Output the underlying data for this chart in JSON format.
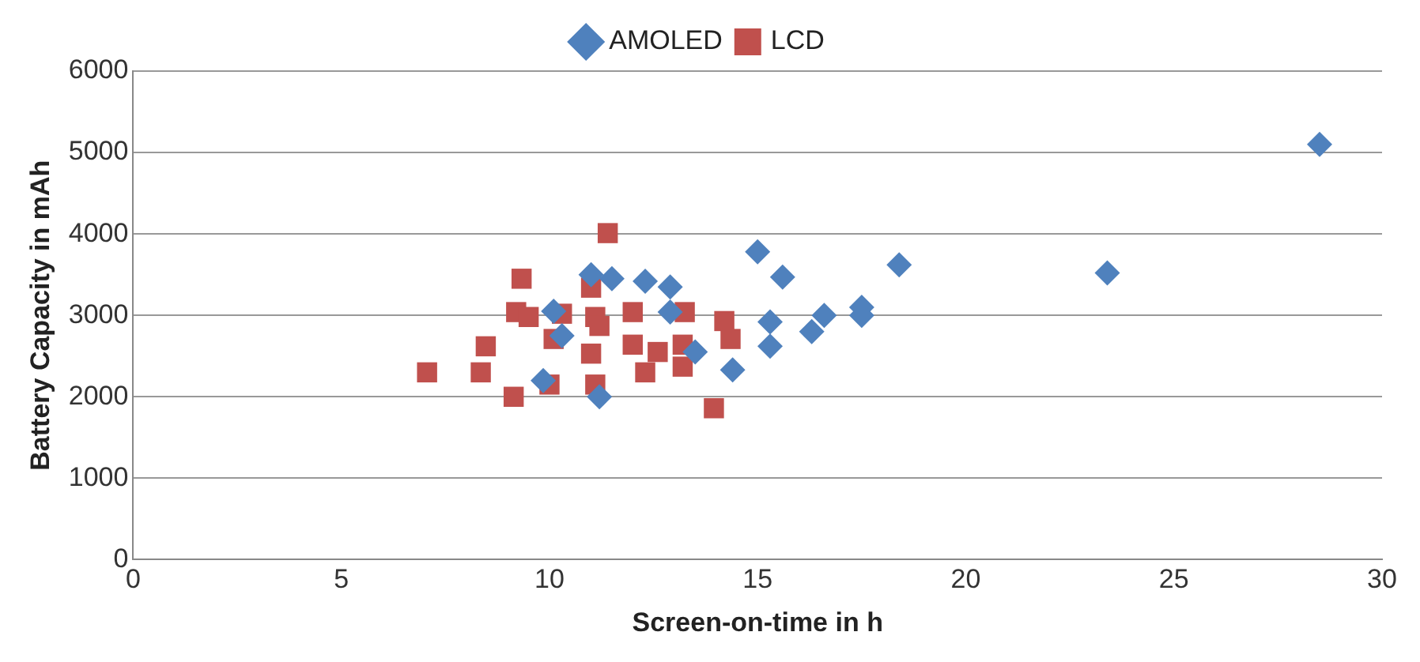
{
  "chart_data": {
    "type": "scatter",
    "xlabel": "Screen-on-time in h",
    "ylabel": "Battery Capacity in mAh",
    "xlim": [
      0,
      30
    ],
    "xticks": [
      0,
      5,
      10,
      15,
      20,
      25,
      30
    ],
    "ylim": [
      0,
      6000
    ],
    "yticks": [
      0,
      1000,
      2000,
      3000,
      4000,
      5000,
      6000
    ],
    "grid": "y",
    "legend": "top",
    "series": [
      {
        "name": "AMOLED",
        "color": "#4f81bd",
        "marker": "diamond",
        "x": [
          28.5,
          23.4,
          18.4,
          17.5,
          17.5,
          16.6,
          16.3,
          15.6,
          15.0,
          15.3,
          15.3,
          14.4,
          12.9,
          12.3,
          11.5,
          11.0,
          11.2,
          9.85,
          10.1,
          10.3,
          12.9,
          13.5
        ],
        "values": [
          5100,
          3520,
          3620,
          3100,
          3000,
          3000,
          2800,
          3470,
          3780,
          2920,
          2620,
          2330,
          3350,
          3420,
          3450,
          3500,
          2000,
          2200,
          3050,
          2750,
          3040,
          2550
        ]
      },
      {
        "name": "LCD",
        "color": "#c0504d",
        "marker": "square",
        "x": [
          7.06,
          8.35,
          8.47,
          9.14,
          9.33,
          9.2,
          9.5,
          10.1,
          10.3,
          10.0,
          11.4,
          11.0,
          11.1,
          11.2,
          11.0,
          11.1,
          12.0,
          12.0,
          12.3,
          12.6,
          13.2,
          13.25,
          14.2,
          14.35,
          13.95,
          13.2
        ],
        "values": [
          2300,
          2300,
          2620,
          2000,
          3450,
          3040,
          2980,
          2710,
          3020,
          2150,
          4010,
          3340,
          2980,
          2870,
          2530,
          2150,
          3040,
          2640,
          2300,
          2550,
          2640,
          3040,
          2930,
          2710,
          1860,
          2370
        ]
      }
    ]
  }
}
